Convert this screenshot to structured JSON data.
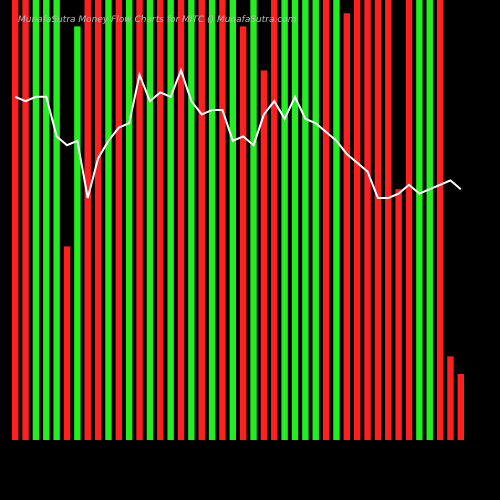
{
  "chart_data": {
    "type": "bar",
    "title": "MunafaSutra Money Flow Charts for MITC () MunafaSutra.com",
    "categories": [
      null,
      null,
      null,
      null,
      null,
      null,
      null,
      null,
      null,
      null,
      null,
      null,
      null,
      null,
      null,
      null,
      null,
      null,
      null,
      null,
      null,
      null,
      null,
      null,
      null,
      null,
      null,
      null,
      null,
      null,
      null,
      null,
      null,
      null,
      null,
      null,
      null,
      null,
      null,
      null,
      null,
      null,
      null,
      null
    ],
    "values": [
      100,
      100,
      100,
      100,
      100,
      44,
      94,
      100,
      100,
      100,
      100,
      100,
      100,
      100,
      100,
      100,
      100,
      100,
      100,
      100,
      100,
      100,
      94,
      100,
      84,
      100,
      100,
      100,
      100,
      100,
      100,
      100,
      97,
      100,
      100,
      100,
      100,
      57,
      100,
      100,
      100,
      100,
      19,
      15
    ],
    "colors": [
      "#ff2020",
      "#ff2020",
      "#22ee22",
      "#22ee22",
      "#22ee22",
      "#ff2020",
      "#22ee22",
      "#ff2020",
      "#ff2020",
      "#22ee22",
      "#ff2020",
      "#22ee22",
      "#ff2020",
      "#22ee22",
      "#ff2020",
      "#22ee22",
      "#ff2020",
      "#22ee22",
      "#ff2020",
      "#22ee22",
      "#ff2020",
      "#22ee22",
      "#ff2020",
      "#22ee22",
      "#ff2020",
      "#ff2020",
      "#22ee22",
      "#22ee22",
      "#22ee22",
      "#22ee22",
      "#ff2020",
      "#22ee22",
      "#ff2020",
      "#ff2020",
      "#ff2020",
      "#ff2020",
      "#ff2020",
      "#ff2020",
      "#ff2020",
      "#22ee22",
      "#22ee22",
      "#ff2020",
      "#ff2020",
      "#ff2020"
    ],
    "line": {
      "color": "#ffffff",
      "values": [
        78,
        77,
        78,
        78,
        69,
        67,
        68,
        55,
        64,
        68,
        71,
        72,
        83,
        77,
        79,
        78,
        84,
        77,
        74,
        75,
        75,
        68,
        69,
        67,
        74,
        77,
        73,
        78,
        73,
        72,
        70,
        68,
        65,
        63,
        61,
        55,
        55,
        56,
        58,
        56,
        57,
        58,
        59,
        57
      ]
    },
    "ylim": [
      0,
      100
    ]
  }
}
